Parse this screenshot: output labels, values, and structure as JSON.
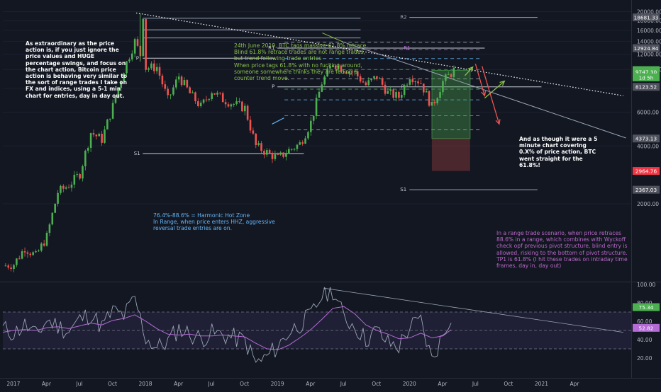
{
  "colors": {
    "background": "#131722",
    "up_candle": "#26a69a",
    "down_candle": "#ef5350",
    "bright_up": "#4caf50",
    "rsi_line": "#9aa5b5",
    "rsi_ma": "#b56bd6",
    "annotation_white": "#ffffff",
    "annotation_green": "#8bc34a",
    "annotation_blue": "#64b5f6",
    "annotation_purple": "#ba68c8",
    "axis_text": "#b2b5be"
  },
  "annotations": {
    "left_note": "As extraordinary as the price action is, if you just ignore the price values and HUGE percentage swings, and focus on the chart action, Bitcoin price action is behaving very similar to the sort of range trades I take on FX and indices, using a 5-1 min chart for entries, day in day out.",
    "top_note": "24th June 2019, BTC tags massive 61.8% retrace. Blind 61.8% retrace trades are not range trades, but trend following trade entries\nWhen price tags 61.8% with no fucking around, someone somewhere thinks they are fading a counter trend move.",
    "hhz_note": "76.4%-88.6% = Harmonic Hot Zone\nIn Range, when price enters HHZ, aggressive reversal trade entries are on.",
    "right_note": "And as though it were a 5 minute chart covering 0.X% of price action, BTC went straight for the 61.8%!",
    "range_note": "In a range trade scenario, when price retraces 88.6% in a range, which combines with Wyckoff check opf previous pivot structure, blind entry is allowed, risking to the bottom of pivot structure. TP1 is 61.8% (I hit these trades on intraday time frames, day in, day out)"
  },
  "pivot_labels": {
    "r2": "R2",
    "r1_left": "R1",
    "r1_right": "R1",
    "p_first": "P",
    "p_second": "P",
    "p_third": "P",
    "s1_left": "S1",
    "s1_right": "S1"
  },
  "chart_data": {
    "type": "candlestick",
    "title": "",
    "x": [
      "2016-12",
      "2017-01",
      "2017-02",
      "2017-03",
      "2017-04",
      "2017-05",
      "2017-06",
      "2017-07",
      "2017-08",
      "2017-09",
      "2017-10",
      "2017-11",
      "2017-12",
      "2018-01",
      "2018-02",
      "2018-03",
      "2018-04",
      "2018-05",
      "2018-06",
      "2018-07",
      "2018-08",
      "2018-09",
      "2018-10",
      "2018-11",
      "2018-12",
      "2019-01",
      "2019-02",
      "2019-03",
      "2019-04",
      "2019-05",
      "2019-06",
      "2019-07",
      "2019-08",
      "2019-09",
      "2019-10",
      "2019-11",
      "2019-12",
      "2020-01",
      "2020-02",
      "2020-03",
      "2020-04",
      "2020-05"
    ],
    "close": [
      950,
      970,
      1180,
      1070,
      1350,
      2300,
      2500,
      2870,
      4700,
      4330,
      6450,
      10000,
      14000,
      10200,
      10300,
      6950,
      9250,
      7500,
      6400,
      7750,
      7000,
      6620,
      6300,
      4000,
      3700,
      3450,
      3800,
      4100,
      5300,
      8550,
      10800,
      10100,
      9600,
      8300,
      9200,
      7550,
      7200,
      9350,
      8550,
      6400,
      8650,
      9900
    ],
    "high_of_period": [
      1000,
      1150,
      1200,
      1300,
      1400,
      2800,
      3000,
      2950,
      4950,
      5000,
      6500,
      11500,
      19700,
      17200,
      11800,
      11700,
      9700,
      10000,
      7800,
      8500,
      8000,
      7400,
      7600,
      6500,
      4300,
      4100,
      4200,
      4200,
      5600,
      9000,
      13900,
      13200,
      12300,
      10950,
      10400,
      9500,
      7800,
      9800,
      10500,
      9200,
      9500,
      10100
    ],
    "x_axis_ticks": [
      "2017",
      "Apr",
      "Jul",
      "Oct",
      "2018",
      "Apr",
      "Jul",
      "Oct",
      "2019",
      "Apr",
      "Jul",
      "Oct",
      "2020",
      "Apr",
      "Jul",
      "Oct",
      "2021",
      "Apr"
    ],
    "y_axis_ticks": [
      20000,
      18000,
      16000,
      14000,
      12000,
      10000,
      8000,
      6000,
      4000,
      2000
    ],
    "y_axis_scale": "log",
    "y_range": [
      800,
      21500
    ],
    "price_tags": [
      {
        "label": "18681.33",
        "value": 18681.33,
        "color": "#50535e"
      },
      {
        "label": "12924.84",
        "value": 12924.84,
        "color": "#50535e"
      },
      {
        "label": "9932.52",
        "value": 9932.52,
        "color": "#4caf50"
      },
      {
        "label": "9747.30",
        "value": 9747.3,
        "color": "#4caf50"
      },
      {
        "label": "1d 5h",
        "value": 9100,
        "color": "#4caf50"
      },
      {
        "label": "8123.52",
        "value": 8123.52,
        "color": "#50535e"
      },
      {
        "label": "4373.13",
        "value": 4373.13,
        "color": "#50535e"
      },
      {
        "label": "2964.76",
        "value": 2964.76,
        "color": "#f23645"
      },
      {
        "label": "2367.03",
        "value": 2367.03,
        "color": "#50535e"
      }
    ],
    "pivot_levels": {
      "first_year": {
        "R2": 18681.33,
        "P": 11450,
        "S1": 3650
      },
      "second_year": {
        "R1": 12924.84,
        "P": 8123.52,
        "S1": 2367.03
      }
    },
    "fib_levels_2019_range": [
      13880,
      12700,
      11400,
      10000,
      8950,
      7900,
      6950,
      5750,
      4850
    ],
    "rsi": {
      "name": "RSI",
      "y_range": [
        0,
        100
      ],
      "y_axis_ticks": [
        100,
        80,
        60,
        40,
        20
      ],
      "band": [
        30,
        70
      ],
      "current_value_tags": [
        {
          "label": "75.34",
          "value": 75.34,
          "color": "#4caf50"
        },
        {
          "label": "52.82",
          "value": 52.82,
          "color": "#b56bd6"
        }
      ],
      "values": [
        52,
        47,
        56,
        44,
        61,
        55,
        49,
        62,
        68,
        54,
        71,
        66,
        84,
        42,
        31,
        38,
        52,
        46,
        41,
        47,
        45,
        42,
        39,
        14,
        21,
        33,
        48,
        57,
        66,
        88,
        94,
        64,
        55,
        40,
        50,
        36,
        33,
        54,
        60,
        18,
        45,
        75
      ],
      "ma_values": [
        48,
        50,
        51,
        50,
        53,
        54,
        52,
        55,
        58,
        56,
        61,
        63,
        67,
        60,
        52,
        46,
        45,
        46,
        44,
        44,
        45,
        44,
        43,
        36,
        30,
        29,
        34,
        42,
        51,
        62,
        74,
        76,
        68,
        56,
        50,
        46,
        41,
        42,
        47,
        42,
        44,
        53
      ]
    }
  }
}
